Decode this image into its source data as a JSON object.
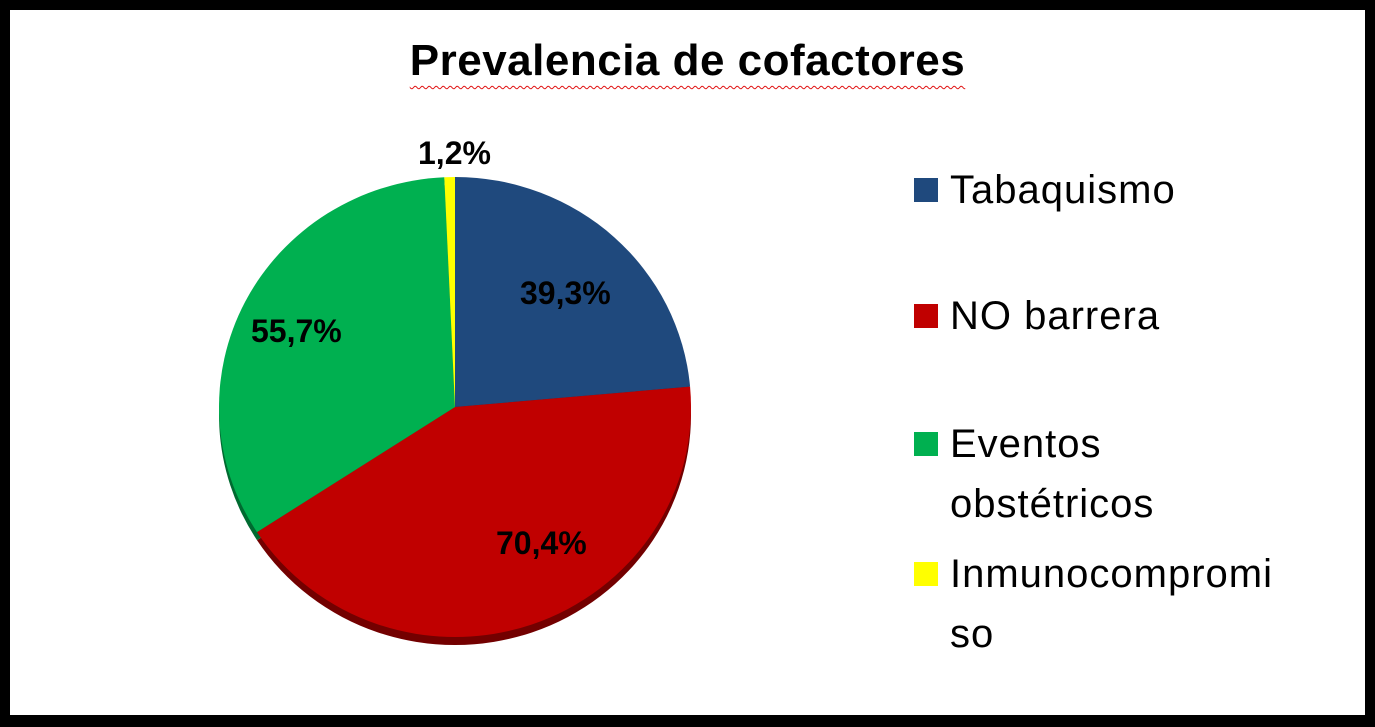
{
  "chart_data": {
    "type": "pie",
    "title": "Prevalencia de cofactores",
    "categories": [
      "Tabaquismo",
      "NO barrera",
      "Eventos obstétricos",
      "Inmunocompromiso"
    ],
    "values": [
      39.3,
      70.4,
      55.7,
      1.2
    ],
    "value_labels": [
      "39,3%",
      "70,4%",
      "55,7%",
      "1,2%"
    ],
    "colors": [
      "#1f497d",
      "#c00000",
      "#00b050",
      "#ffff00"
    ],
    "legend_position": "right",
    "start_angle": "12 o'clock, clockwise"
  },
  "legend": {
    "items": [
      {
        "lines": [
          "Tabaquismo"
        ],
        "color": "#1f497d"
      },
      {
        "lines": [
          "NO barrera"
        ],
        "color": "#c00000"
      },
      {
        "lines": [
          "Eventos",
          "obstétricos"
        ],
        "color": "#00b050"
      },
      {
        "lines": [
          "Inmunocompromi",
          "so"
        ],
        "color": "#ffff00"
      }
    ]
  }
}
